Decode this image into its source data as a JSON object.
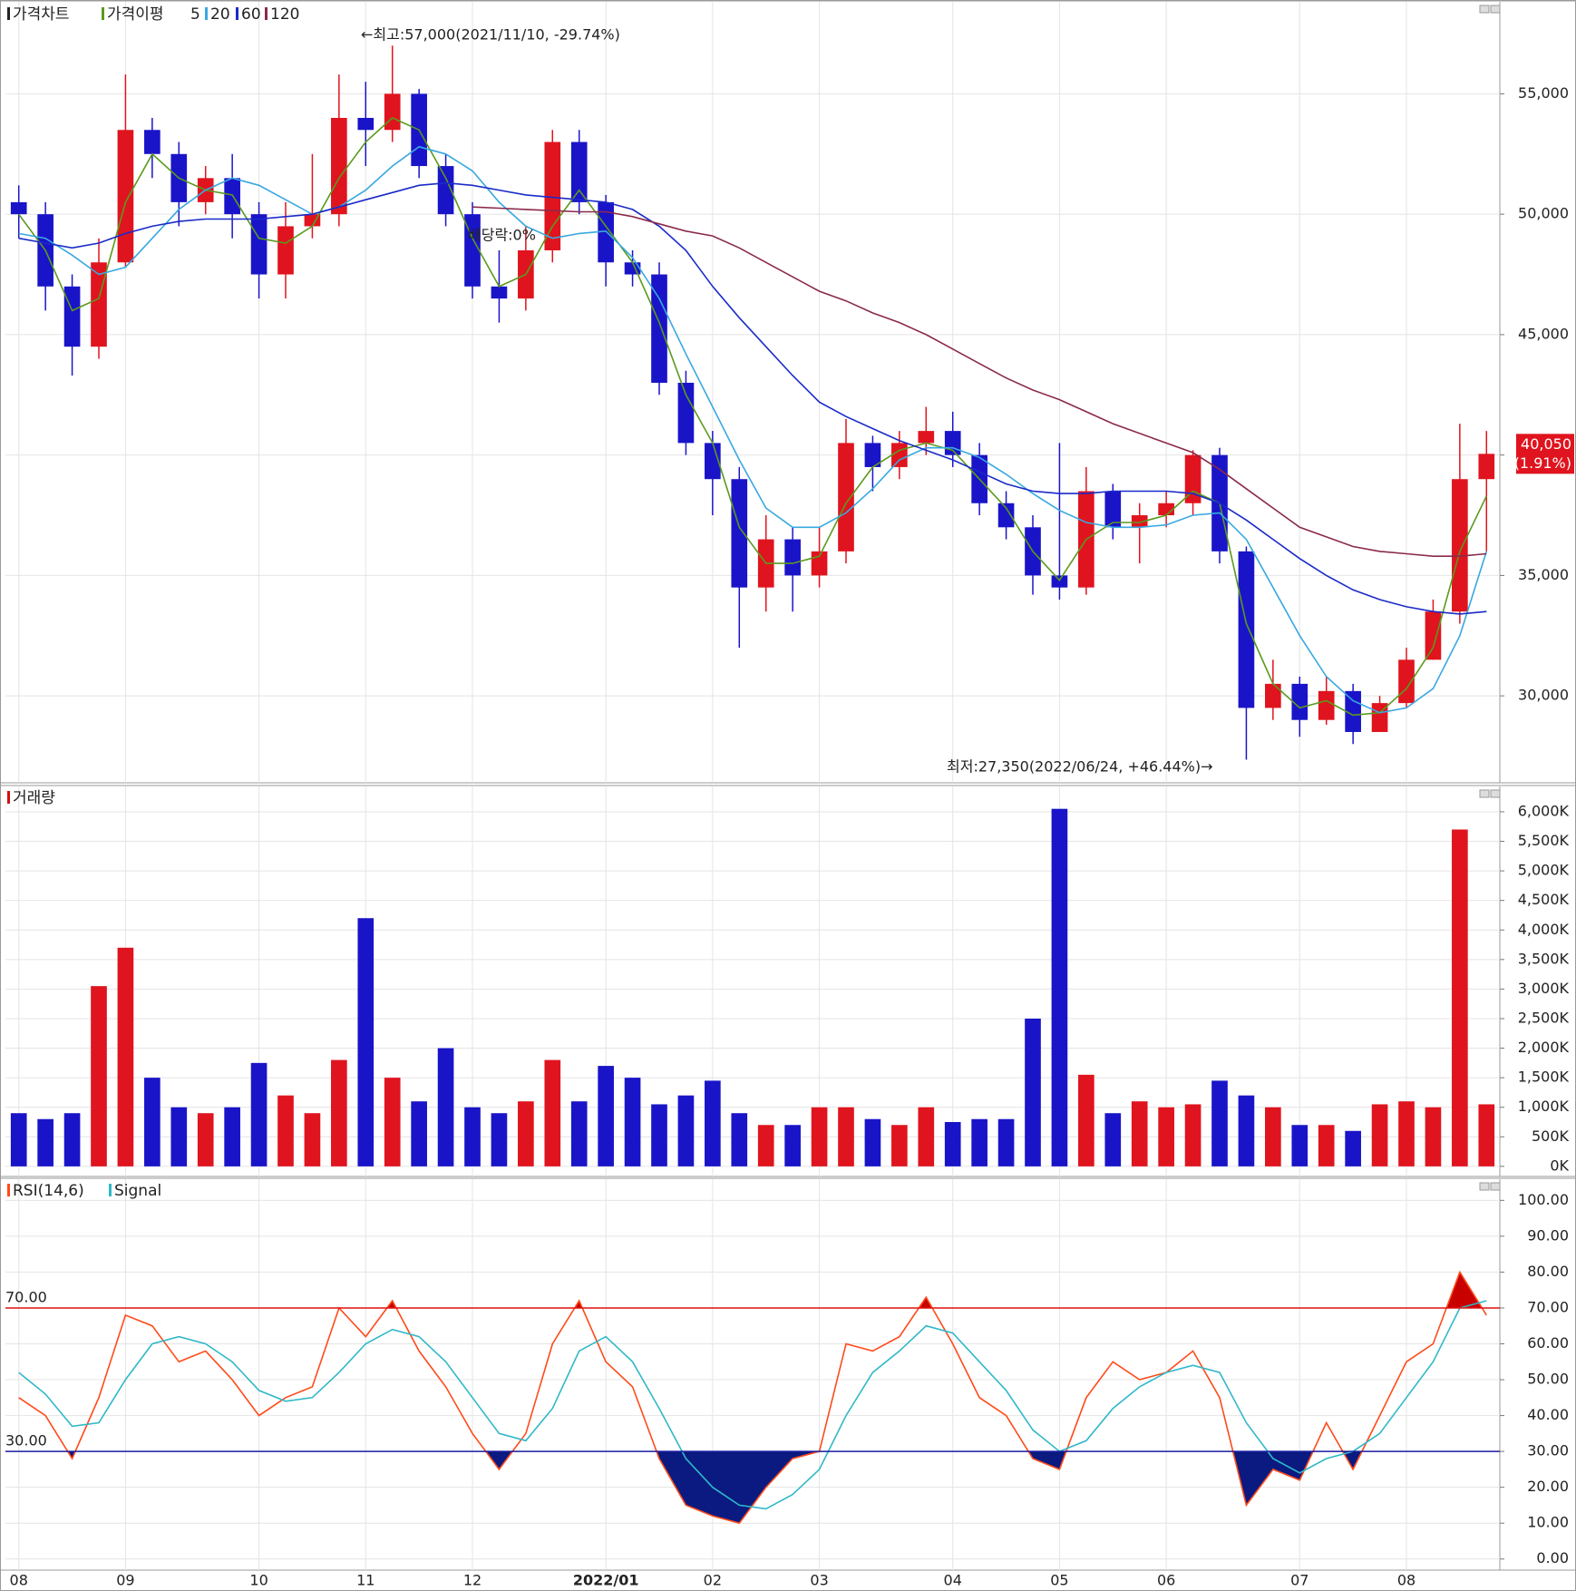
{
  "chart_data": [
    {
      "type": "candlestick",
      "legend_title": "가격차트",
      "ma_title": "가격이평",
      "categories": [
        "08",
        null,
        null,
        null,
        "09",
        null,
        null,
        null,
        null,
        "10",
        null,
        null,
        null,
        "11",
        null,
        null,
        null,
        "12",
        null,
        null,
        null,
        null,
        "2022/01",
        null,
        null,
        null,
        "02",
        null,
        null,
        null,
        "03",
        null,
        null,
        null,
        null,
        "04",
        null,
        null,
        null,
        "05",
        null,
        null,
        null,
        "06",
        null,
        null,
        null,
        null,
        "07",
        null,
        null,
        null,
        "08",
        null,
        null,
        null
      ],
      "open": [
        50500,
        50000,
        47000,
        44500,
        48000,
        53500,
        52500,
        50500,
        51500,
        50000,
        47500,
        49500,
        50000,
        54000,
        53500,
        55000,
        52000,
        50000,
        47000,
        46500,
        48500,
        53000,
        50500,
        48000,
        47500,
        43000,
        40500,
        39000,
        34500,
        36500,
        35000,
        36000,
        40500,
        39500,
        40500,
        41000,
        40000,
        38000,
        37000,
        35000,
        34500,
        38500,
        37000,
        37500,
        38000,
        40000,
        36000,
        29500,
        30500,
        29000,
        30200,
        28500,
        29700,
        31500,
        33500,
        39000
      ],
      "high": [
        51200,
        50500,
        47500,
        49000,
        55800,
        54000,
        53000,
        52000,
        52500,
        50500,
        50500,
        52500,
        55800,
        55500,
        57000,
        55200,
        52500,
        50500,
        48500,
        49500,
        53500,
        53500,
        50800,
        48500,
        48000,
        43500,
        41000,
        39500,
        37500,
        37000,
        37000,
        41500,
        40800,
        41000,
        42000,
        41800,
        40500,
        38500,
        37500,
        40500,
        39500,
        38800,
        38000,
        38500,
        40200,
        40300,
        36200,
        31500,
        30800,
        30800,
        30500,
        30000,
        32000,
        34000,
        41300,
        41000
      ],
      "low": [
        49000,
        46000,
        43300,
        44000,
        47800,
        51500,
        49500,
        50000,
        49000,
        46500,
        46500,
        49000,
        49500,
        52000,
        53000,
        51500,
        49500,
        46500,
        45500,
        46000,
        48000,
        50000,
        47000,
        47000,
        42500,
        40000,
        37500,
        32000,
        33500,
        33500,
        34500,
        35500,
        38500,
        39000,
        40000,
        39500,
        37500,
        36500,
        34200,
        34000,
        34200,
        36500,
        35500,
        37000,
        37500,
        35500,
        27350,
        29000,
        28300,
        28800,
        28000,
        28500,
        29500,
        31500,
        33000,
        36000
      ],
      "close": [
        50000,
        47000,
        44500,
        48000,
        53500,
        52500,
        50500,
        51500,
        50000,
        47500,
        49500,
        50000,
        54000,
        53500,
        55000,
        52000,
        50000,
        47000,
        46500,
        48500,
        53000,
        50500,
        48000,
        47500,
        43000,
        40500,
        39000,
        34500,
        36500,
        35000,
        36000,
        40500,
        39500,
        40500,
        41000,
        40000,
        38000,
        37000,
        35000,
        34500,
        38500,
        37000,
        37500,
        38000,
        40000,
        36000,
        29500,
        30500,
        29000,
        30200,
        28500,
        29700,
        31500,
        33500,
        39000,
        40050
      ],
      "up_color": "#e0141e",
      "down_color": "#1a14c8",
      "series": [
        {
          "name": "5",
          "color": "#5a9a1e",
          "values": [
            50000,
            48500,
            46000,
            46500,
            50500,
            52500,
            51500,
            51000,
            50800,
            49000,
            48800,
            49500,
            51500,
            53000,
            54000,
            53500,
            51500,
            49000,
            47000,
            47500,
            49500,
            51000,
            49500,
            48000,
            45500,
            42500,
            40500,
            37000,
            35500,
            35500,
            35800,
            38000,
            39500,
            40200,
            40500,
            40200,
            39000,
            37800,
            36000,
            34800,
            36500,
            37200,
            37200,
            37500,
            38500,
            38000,
            33000,
            30500,
            29500,
            29800,
            29200,
            29300,
            30300,
            32000,
            36000,
            38300
          ]
        },
        {
          "name": "20",
          "color": "#38a8e0",
          "values": [
            49200,
            49000,
            48300,
            47500,
            47800,
            49000,
            50200,
            51000,
            51500,
            51200,
            50600,
            50000,
            50300,
            51000,
            52000,
            52800,
            52500,
            51800,
            50500,
            49500,
            49000,
            49200,
            49300,
            48200,
            46500,
            44200,
            42000,
            39800,
            37800,
            37000,
            37000,
            37600,
            38600,
            39800,
            40300,
            40300,
            39900,
            39200,
            38400,
            37700,
            37200,
            37000,
            37000,
            37100,
            37500,
            37600,
            36500,
            34500,
            32500,
            30800,
            29800,
            29300,
            29500,
            30300,
            32500,
            36000
          ]
        },
        {
          "name": "60",
          "color": "#1a2ac8",
          "values": [
            49000,
            48800,
            48600,
            48800,
            49200,
            49500,
            49700,
            49800,
            49800,
            49800,
            49900,
            50000,
            50300,
            50600,
            50900,
            51200,
            51300,
            51200,
            51000,
            50800,
            50700,
            50600,
            50500,
            50200,
            49500,
            48500,
            47000,
            45700,
            44500,
            43300,
            42200,
            41600,
            41100,
            40600,
            40200,
            39800,
            39300,
            38800,
            38500,
            38400,
            38400,
            38500,
            38500,
            38500,
            38400,
            38000,
            37300,
            36500,
            35700,
            35000,
            34400,
            34000,
            33700,
            33500,
            33400,
            33500
          ]
        },
        {
          "name": "120",
          "color": "#8a2a4a",
          "values": [
            null,
            null,
            null,
            null,
            null,
            null,
            null,
            null,
            null,
            null,
            null,
            null,
            null,
            null,
            null,
            null,
            null,
            50300,
            50250,
            50200,
            50150,
            50100,
            50100,
            49900,
            49600,
            49300,
            49100,
            48600,
            48000,
            47400,
            46800,
            46400,
            45900,
            45500,
            45000,
            44400,
            43800,
            43200,
            42700,
            42300,
            41800,
            41300,
            40900,
            40500,
            40100,
            39400,
            38600,
            37800,
            37000,
            36600,
            36200,
            36000,
            35900,
            35800,
            35800,
            35900
          ]
        }
      ],
      "ylim": [
        26390,
        58820
      ],
      "yticks": [
        {
          "value": 30000,
          "label": "30,000"
        },
        {
          "value": 35000,
          "label": "35,000"
        },
        {
          "value": 40000,
          "label": "40,000"
        },
        {
          "value": 45000,
          "label": "45,000"
        },
        {
          "value": 50000,
          "label": "50,000"
        },
        {
          "value": 55000,
          "label": "55,000"
        }
      ],
      "grid": true,
      "annotations": [
        {
          "text": "←최고:57,000(2021/11/10, -29.74%)",
          "color": "#e0141e"
        },
        {
          "text": "최저:27,350(2022/06/24, +46.44%)→",
          "color": "#1a14c8"
        },
        {
          "text": "배당락:0%",
          "color": "#2a7a2a"
        }
      ],
      "last_price_label": "40,050",
      "last_change_label": "(1.91%)"
    },
    {
      "type": "bar",
      "title": "거래량",
      "title_color": "#d01010",
      "values": [
        900,
        800,
        900,
        3050,
        3700,
        1500,
        1000,
        900,
        1000,
        1750,
        1200,
        900,
        1800,
        4200,
        1500,
        1100,
        2000,
        1000,
        900,
        1100,
        1800,
        1100,
        1700,
        1500,
        1050,
        1200,
        1450,
        900,
        700,
        700,
        1000,
        1000,
        800,
        700,
        1000,
        750,
        800,
        800,
        2500,
        6050,
        1550,
        900,
        1100,
        1000,
        1050,
        1450,
        1200,
        1000,
        700,
        700,
        600,
        1050,
        1100,
        1000,
        5700,
        1050
      ],
      "ylim": [
        -171,
        6429
      ],
      "yticks": [
        {
          "value": 0,
          "label": "0K"
        },
        {
          "value": 500,
          "label": "500K"
        },
        {
          "value": 1000,
          "label": "1,000K"
        },
        {
          "value": 1500,
          "label": "1,500K"
        },
        {
          "value": 2000,
          "label": "2,000K"
        },
        {
          "value": 2500,
          "label": "2,500K"
        },
        {
          "value": 3000,
          "label": "3,000K"
        },
        {
          "value": 3500,
          "label": "3,500K"
        },
        {
          "value": 4000,
          "label": "4,000K"
        },
        {
          "value": 4500,
          "label": "4,500K"
        },
        {
          "value": 5000,
          "label": "5,000K"
        },
        {
          "value": 5500,
          "label": "5,500K"
        },
        {
          "value": 6000,
          "label": "6,000K"
        }
      ],
      "grid": true
    },
    {
      "type": "line",
      "series": [
        {
          "name": "RSI(14,6)",
          "color": "#ff4a1a",
          "values": [
            45,
            40,
            28,
            45,
            68,
            65,
            55,
            58,
            50,
            40,
            45,
            48,
            70,
            62,
            72,
            58,
            48,
            35,
            25,
            35,
            60,
            72,
            55,
            48,
            28,
            15,
            12,
            10,
            20,
            28,
            30,
            60,
            58,
            62,
            73,
            60,
            45,
            40,
            28,
            25,
            45,
            55,
            50,
            52,
            58,
            45,
            15,
            25,
            22,
            38,
            25,
            40,
            55,
            60,
            80,
            68
          ]
        },
        {
          "name": "Signal",
          "color": "#30b8c8",
          "values": [
            52,
            46,
            37,
            38,
            50,
            60,
            62,
            60,
            55,
            47,
            44,
            45,
            52,
            60,
            64,
            62,
            55,
            45,
            35,
            33,
            42,
            58,
            62,
            55,
            42,
            28,
            20,
            15,
            14,
            18,
            25,
            40,
            52,
            58,
            65,
            63,
            55,
            47,
            36,
            30,
            33,
            42,
            48,
            52,
            54,
            52,
            38,
            28,
            24,
            28,
            30,
            35,
            45,
            55,
            70,
            72
          ]
        }
      ],
      "levels": [
        {
          "value": 70,
          "label": "70.00",
          "color": "#e01010",
          "fill": "#c80000",
          "side": "above"
        },
        {
          "value": 30,
          "label": "30.00",
          "color": "#1a1aa0",
          "fill": "#0a1a80",
          "side": "below"
        }
      ],
      "ylim": [
        -3.1,
        105.9
      ],
      "yticks": [
        {
          "value": 0,
          "label": "0.00"
        },
        {
          "value": 10,
          "label": "10.00"
        },
        {
          "value": 20,
          "label": "20.00"
        },
        {
          "value": 30,
          "label": "30.00"
        },
        {
          "value": 40,
          "label": "40.00"
        },
        {
          "value": 50,
          "label": "50.00"
        },
        {
          "value": 60,
          "label": "60.00"
        },
        {
          "value": 70,
          "label": "70.00"
        },
        {
          "value": 80,
          "label": "80.00"
        },
        {
          "value": 90,
          "label": "90.00"
        },
        {
          "value": 100,
          "label": "100.00"
        }
      ],
      "grid": true
    }
  ]
}
